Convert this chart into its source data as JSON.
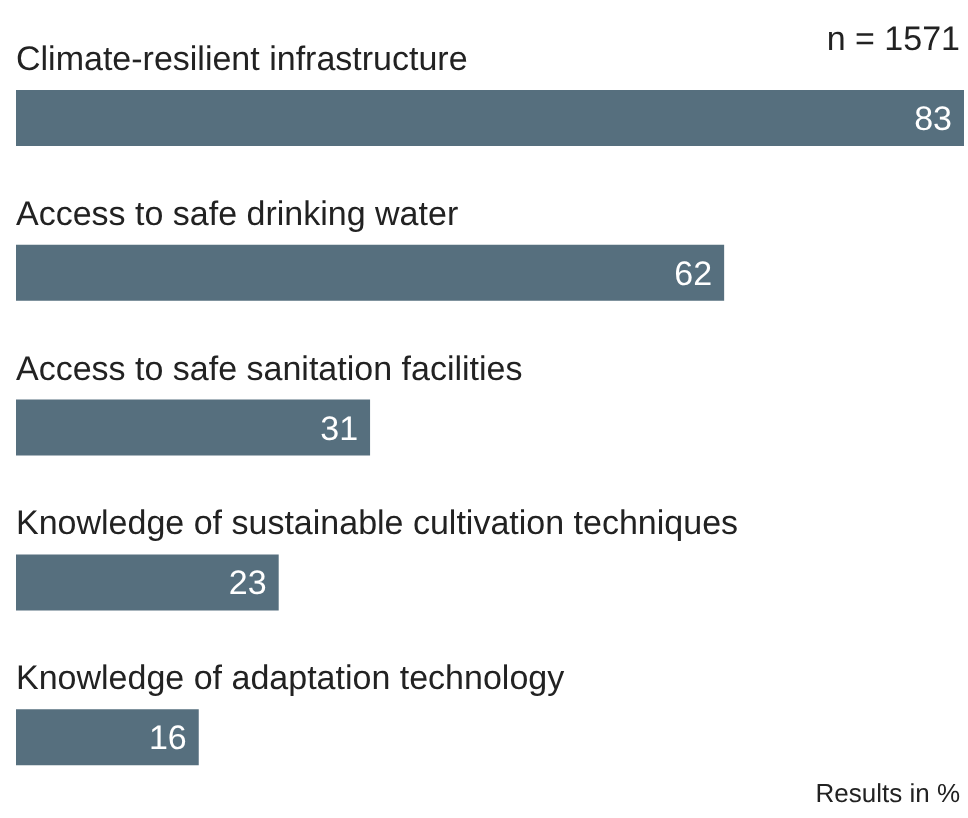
{
  "chart_data": {
    "type": "bar",
    "orientation": "horizontal",
    "categories": [
      "Climate-resilient infrastructure",
      "Access to safe drinking water",
      "Access to safe sanitation facilities",
      "Knowledge of sustainable cultivation techniques",
      "Knowledge of adaptation technology"
    ],
    "values": [
      83,
      62,
      31,
      23,
      16
    ],
    "color": "#566f7e",
    "data_labels": true,
    "grid": false,
    "legend": false,
    "annotations": [
      "n = 1571",
      "Results in %"
    ]
  }
}
